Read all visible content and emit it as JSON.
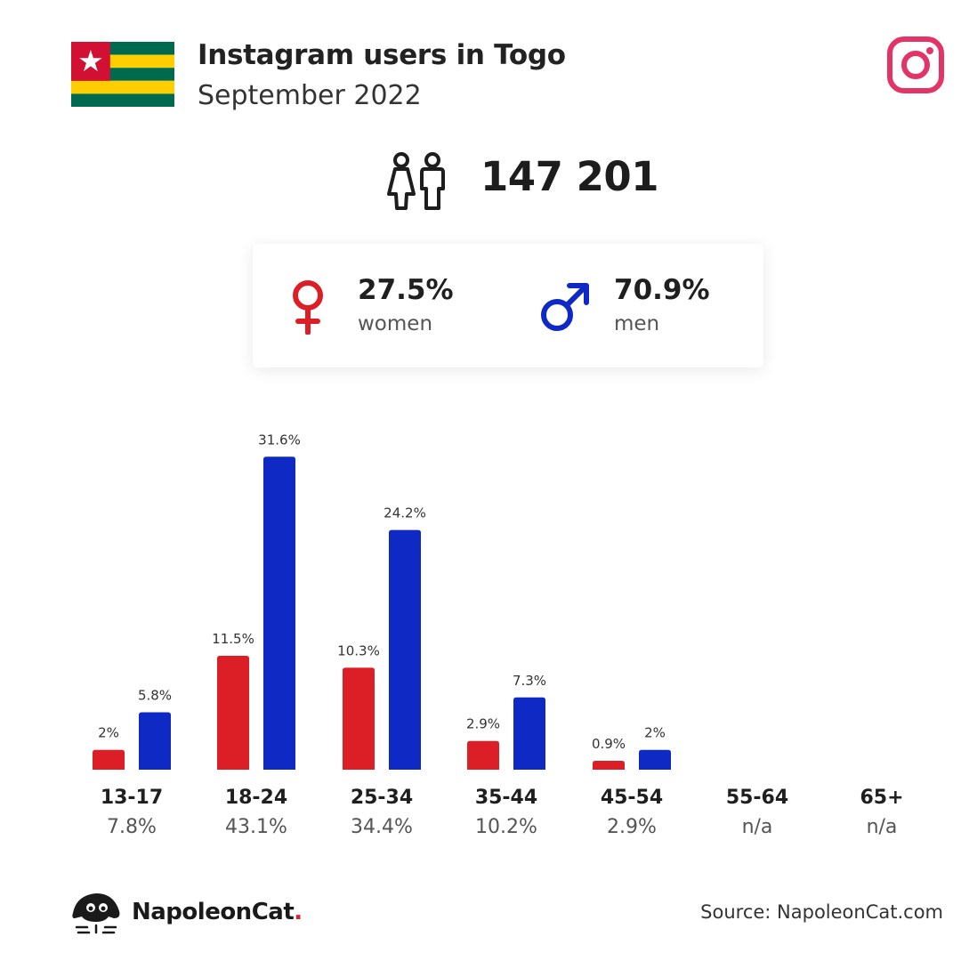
{
  "header": {
    "title": "Instagram users in Togo",
    "subtitle": "September 2022"
  },
  "total_users": "147 201",
  "gender": {
    "women": {
      "value": "27.5%",
      "label": "women"
    },
    "men": {
      "value": "70.9%",
      "label": "men"
    }
  },
  "colors": {
    "women": "#dc1f26",
    "men": "#0f2ac4",
    "instagram": "#e23467"
  },
  "chart_data": {
    "type": "bar",
    "categories": [
      "13-17",
      "18-24",
      "25-34",
      "35-44",
      "45-54",
      "55-64",
      "65+"
    ],
    "category_totals": [
      "7.8%",
      "43.1%",
      "34.4%",
      "10.2%",
      "2.9%",
      "n/a",
      "n/a"
    ],
    "series": [
      {
        "name": "women",
        "values": [
          2,
          11.5,
          10.3,
          2.9,
          0.9,
          null,
          null
        ],
        "labels": [
          "2%",
          "11.5%",
          "10.3%",
          "2.9%",
          "0.9%",
          "",
          ""
        ]
      },
      {
        "name": "men",
        "values": [
          5.8,
          31.6,
          24.2,
          7.3,
          2,
          null,
          null
        ],
        "labels": [
          "5.8%",
          "31.6%",
          "24.2%",
          "7.3%",
          "2%",
          "",
          ""
        ]
      }
    ]
  },
  "footer": {
    "brand_main": "NapoleonCat",
    "brand_dot": ".",
    "source": "Source: NapoleonCat.com"
  }
}
